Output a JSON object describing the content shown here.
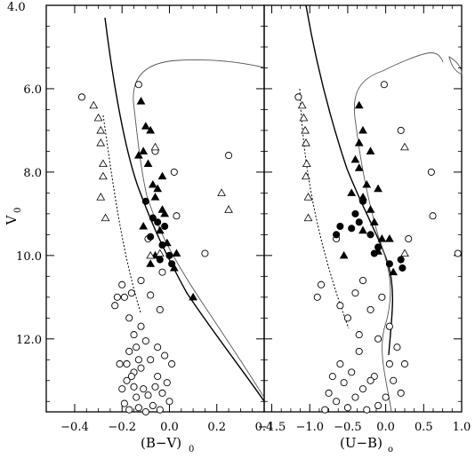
{
  "chart_data": [
    {
      "type": "scatter",
      "panel": "left",
      "xlabel_main": "(B−V)",
      "xlabel_sub": "0",
      "ylabel_main": "V",
      "ylabel_sub": "0",
      "xlim": [
        -0.52,
        0.4
      ],
      "ylim": [
        13.75,
        4.0
      ],
      "x_ticks": [
        -0.4,
        -0.2,
        0.0,
        0.2,
        0.4
      ],
      "x_tick_labels": [
        "−0.4",
        "−0.2",
        "0.0",
        "0.2",
        "0.4"
      ],
      "y_ticks": [
        6.0,
        8.0,
        10.0,
        12.0
      ],
      "y_tick_labels": [
        "6.0",
        "8.0",
        "10.0",
        "12.0"
      ],
      "top_left_label": "4.0",
      "series": [
        {
          "marker": "open-circle",
          "points": [
            [
              -0.37,
              6.2
            ],
            [
              -0.13,
              5.9
            ],
            [
              -0.06,
              7.5
            ],
            [
              0.02,
              8.0
            ],
            [
              -0.09,
              9.6
            ],
            [
              0.15,
              9.95
            ],
            [
              0.25,
              7.6
            ],
            [
              0.03,
              9.05
            ],
            [
              -0.2,
              10.7
            ],
            [
              -0.22,
              11.0
            ],
            [
              -0.23,
              11.2
            ],
            [
              -0.19,
              11.0
            ],
            [
              -0.17,
              11.5
            ],
            [
              -0.16,
              10.9
            ],
            [
              -0.12,
              10.6
            ],
            [
              -0.08,
              10.95
            ],
            [
              -0.04,
              11.3
            ],
            [
              -0.03,
              10.4
            ],
            [
              -0.15,
              11.9
            ],
            [
              -0.14,
              12.2
            ],
            [
              -0.13,
              12.5
            ],
            [
              -0.15,
              12.8
            ],
            [
              -0.1,
              12.05
            ],
            [
              -0.17,
              12.3
            ],
            [
              -0.16,
              12.9
            ],
            [
              -0.11,
              13.2
            ],
            [
              -0.18,
              13.0
            ],
            [
              -0.14,
              13.4
            ],
            [
              -0.12,
              12.7
            ],
            [
              -0.08,
              12.5
            ],
            [
              -0.05,
              12.9
            ],
            [
              -0.07,
              13.6
            ],
            [
              -0.03,
              13.3
            ],
            [
              -0.01,
              13.05
            ],
            [
              0.01,
              12.6
            ],
            [
              -0.19,
              13.55
            ],
            [
              -0.2,
              13.2
            ],
            [
              -0.17,
              13.7
            ],
            [
              -0.13,
              13.65
            ],
            [
              -0.09,
              13.35
            ],
            [
              -0.06,
              13.15
            ],
            [
              -0.04,
              13.7
            ],
            [
              -0.02,
              12.4
            ],
            [
              -0.1,
              13.75
            ],
            [
              -0.15,
              13.15
            ],
            [
              -0.18,
              12.6
            ],
            [
              -0.12,
              11.7
            ],
            [
              -0.05,
              12.2
            ],
            [
              0.0,
              13.5
            ],
            [
              -0.21,
              12.6
            ]
          ]
        },
        {
          "marker": "filled-circle",
          "points": [
            [
              -0.1,
              8.7
            ],
            [
              -0.07,
              9.1
            ],
            [
              -0.05,
              9.2
            ],
            [
              -0.02,
              9.3
            ],
            [
              -0.03,
              9.75
            ],
            [
              0.0,
              10.0
            ],
            [
              0.01,
              10.2
            ],
            [
              -0.08,
              9.55
            ],
            [
              -0.04,
              10.1
            ]
          ]
        },
        {
          "marker": "filled-triangle",
          "points": [
            [
              -0.12,
              6.3
            ],
            [
              -0.1,
              6.9
            ],
            [
              -0.08,
              7.0
            ],
            [
              -0.11,
              7.5
            ],
            [
              -0.13,
              7.6
            ],
            [
              -0.09,
              7.8
            ],
            [
              -0.07,
              8.3
            ],
            [
              -0.05,
              8.4
            ],
            [
              -0.06,
              8.6
            ],
            [
              -0.03,
              8.9
            ],
            [
              -0.02,
              9.0
            ],
            [
              -0.04,
              9.4
            ],
            [
              -0.01,
              9.7
            ],
            [
              -0.06,
              10.0
            ],
            [
              -0.08,
              10.2
            ],
            [
              0.03,
              9.95
            ],
            [
              0.02,
              10.3
            ],
            [
              0.1,
              11.0
            ],
            [
              -0.03,
              8.1
            ],
            [
              -0.11,
              9.3
            ]
          ]
        },
        {
          "marker": "open-triangle",
          "points": [
            [
              -0.32,
              6.4
            ],
            [
              -0.3,
              6.7
            ],
            [
              -0.29,
              7.0
            ],
            [
              -0.29,
              7.3
            ],
            [
              -0.28,
              7.8
            ],
            [
              -0.28,
              8.1
            ],
            [
              -0.29,
              8.6
            ],
            [
              -0.27,
              9.1
            ],
            [
              -0.06,
              7.4
            ],
            [
              -0.04,
              9.95
            ],
            [
              -0.08,
              10.0
            ],
            [
              0.22,
              8.5
            ],
            [
              0.25,
              8.9
            ]
          ]
        }
      ]
    },
    {
      "type": "scatter",
      "panel": "right",
      "xlabel_main": "(U−B)",
      "xlabel_sub": "o",
      "xlim": [
        -1.6,
        1.0
      ],
      "ylim": [
        13.75,
        4.0
      ],
      "x_ticks": [
        -1.5,
        -1.0,
        -0.5,
        0.0,
        0.5,
        1.0
      ],
      "x_tick_labels": [
        "−1.5",
        "−1.0",
        "−0.5",
        "0.0",
        "0.5",
        "1.0"
      ],
      "series": [
        {
          "marker": "open-circle",
          "points": [
            [
              -1.15,
              6.2
            ],
            [
              -0.02,
              5.9
            ],
            [
              0.2,
              7.0
            ],
            [
              0.6,
              8.0
            ],
            [
              0.62,
              9.05
            ],
            [
              0.95,
              9.95
            ],
            [
              0.3,
              9.6
            ],
            [
              -0.65,
              9.6
            ],
            [
              -0.85,
              10.7
            ],
            [
              -0.9,
              11.0
            ],
            [
              -0.6,
              11.2
            ],
            [
              -0.5,
              11.5
            ],
            [
              -0.4,
              10.9
            ],
            [
              -0.3,
              10.6
            ],
            [
              -0.2,
              11.3
            ],
            [
              -0.1,
              12.0
            ],
            [
              0.05,
              12.6
            ],
            [
              -0.35,
              12.3
            ],
            [
              -0.45,
              12.8
            ],
            [
              -0.55,
              13.05
            ],
            [
              -0.65,
              13.5
            ],
            [
              -0.3,
              13.2
            ],
            [
              -0.15,
              12.9
            ],
            [
              0.0,
              13.4
            ],
            [
              0.1,
              13.0
            ],
            [
              0.15,
              12.2
            ],
            [
              -0.25,
              13.7
            ],
            [
              -0.4,
              13.4
            ],
            [
              -0.75,
              13.3
            ],
            [
              -0.6,
              12.6
            ],
            [
              -0.5,
              13.65
            ],
            [
              -0.1,
              13.6
            ],
            [
              0.05,
              11.7
            ],
            [
              0.2,
              13.3
            ],
            [
              -0.35,
              11.9
            ],
            [
              0.25,
              12.6
            ],
            [
              -0.8,
              13.7
            ],
            [
              -0.2,
              13.0
            ],
            [
              -0.7,
              12.9
            ],
            [
              -0.05,
              11.0
            ]
          ]
        },
        {
          "marker": "filled-circle",
          "points": [
            [
              -0.3,
              8.7
            ],
            [
              -0.4,
              9.0
            ],
            [
              -0.35,
              9.2
            ],
            [
              -0.6,
              9.3
            ],
            [
              -0.65,
              9.5
            ],
            [
              -0.2,
              9.5
            ],
            [
              -0.1,
              9.8
            ],
            [
              0.05,
              10.2
            ],
            [
              0.2,
              10.1
            ],
            [
              0.22,
              10.3
            ],
            [
              -0.15,
              9.95
            ],
            [
              -0.45,
              9.35
            ]
          ]
        },
        {
          "marker": "filled-triangle",
          "points": [
            [
              -0.35,
              6.4
            ],
            [
              -0.3,
              7.0
            ],
            [
              -0.35,
              7.3
            ],
            [
              -0.4,
              7.7
            ],
            [
              -0.35,
              7.9
            ],
            [
              -0.25,
              8.3
            ],
            [
              -0.45,
              8.5
            ],
            [
              -0.3,
              8.6
            ],
            [
              -0.2,
              8.9
            ],
            [
              -0.15,
              9.2
            ],
            [
              -0.05,
              9.6
            ],
            [
              -0.1,
              9.9
            ],
            [
              0.1,
              10.4
            ],
            [
              0.05,
              9.6
            ],
            [
              -0.3,
              9.4
            ],
            [
              -0.55,
              10.0
            ],
            [
              -0.2,
              7.5
            ],
            [
              -0.1,
              8.4
            ]
          ]
        },
        {
          "marker": "open-triangle",
          "points": [
            [
              -1.1,
              6.4
            ],
            [
              -1.08,
              6.7
            ],
            [
              -1.06,
              7.0
            ],
            [
              -1.05,
              7.3
            ],
            [
              -1.04,
              7.8
            ],
            [
              -1.05,
              8.1
            ],
            [
              -1.02,
              8.6
            ],
            [
              -1.02,
              9.1
            ],
            [
              0.25,
              7.4
            ],
            [
              0.25,
              9.95
            ]
          ]
        }
      ]
    }
  ]
}
